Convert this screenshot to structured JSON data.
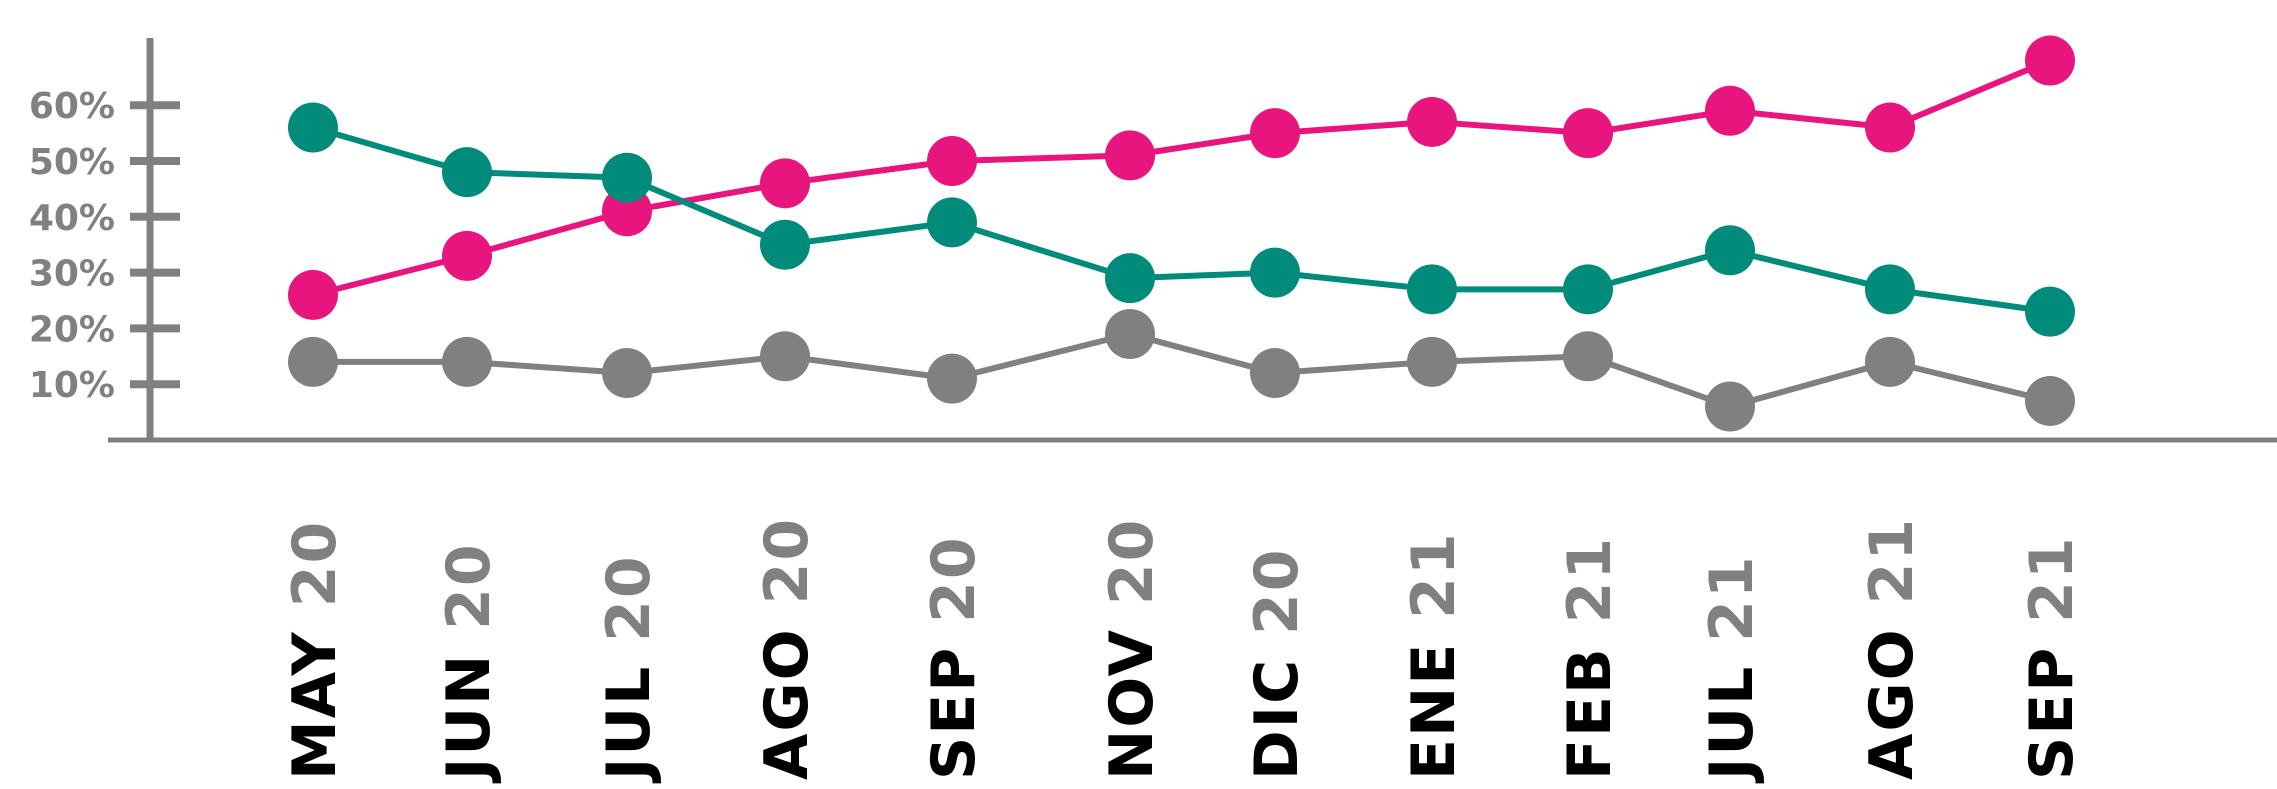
{
  "chart_data": {
    "type": "line",
    "title": "",
    "xlabel": "",
    "ylabel": "",
    "ylim": [
      0,
      70
    ],
    "grid": false,
    "legend": "none",
    "yticks": [
      {
        "value": 10,
        "label": "10%"
      },
      {
        "value": 20,
        "label": "20%"
      },
      {
        "value": 30,
        "label": "30%"
      },
      {
        "value": 40,
        "label": "40%"
      },
      {
        "value": 50,
        "label": "50%"
      },
      {
        "value": 60,
        "label": "60%"
      }
    ],
    "categories": [
      {
        "month": "MAY",
        "year": "20"
      },
      {
        "month": "JUN",
        "year": "20"
      },
      {
        "month": "JUL",
        "year": "20"
      },
      {
        "month": "AGO",
        "year": "20"
      },
      {
        "month": "SEP",
        "year": "20"
      },
      {
        "month": "NOV",
        "year": "20"
      },
      {
        "month": "DIC",
        "year": "20"
      },
      {
        "month": "ENE",
        "year": "21"
      },
      {
        "month": "FEB",
        "year": "21"
      },
      {
        "month": "JUL",
        "year": "21"
      },
      {
        "month": "AGO",
        "year": "21"
      },
      {
        "month": "SEP",
        "year": "21"
      }
    ],
    "series": [
      {
        "color": "#e8157f",
        "values": [
          26,
          33,
          41,
          46,
          50,
          51,
          55,
          57,
          55,
          59,
          56,
          68
        ]
      },
      {
        "color": "#008b7a",
        "values": [
          56,
          48,
          47,
          35,
          39,
          29,
          30,
          27,
          27,
          34,
          27,
          23
        ]
      },
      {
        "color": "#808080",
        "values": [
          14,
          14,
          12,
          15,
          11,
          19,
          12,
          14,
          15,
          6,
          14,
          7
        ]
      }
    ],
    "colors": {
      "axis": "#808080",
      "month_text": "#000000",
      "year_text": "#808080",
      "tick_text": "#808080"
    }
  }
}
